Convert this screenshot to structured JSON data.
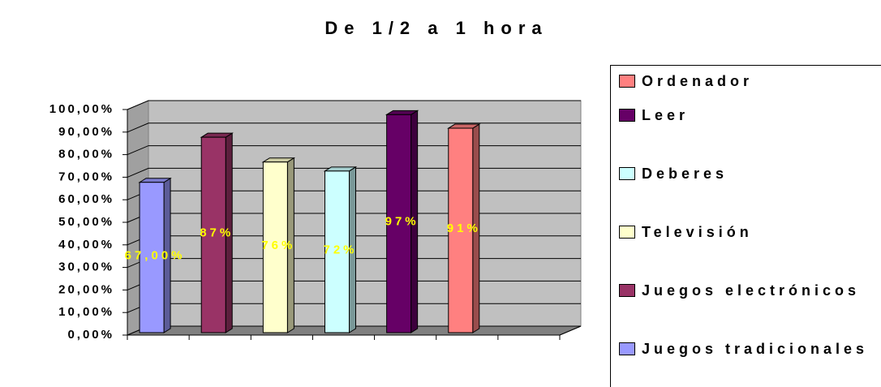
{
  "chart_data": {
    "type": "bar",
    "title": "De 1/2 a 1 hora",
    "series": [
      {
        "name": "Juegos tradicionales",
        "color": "#9999ff",
        "values": [
          67
        ],
        "value_labels": [
          "67,00%"
        ]
      },
      {
        "name": "Juegos electrónicos",
        "color": "#993366",
        "values": [
          87
        ],
        "value_labels": [
          "87%"
        ]
      },
      {
        "name": "Televisión",
        "color": "#ffffcc",
        "values": [
          76
        ],
        "value_labels": [
          "76%"
        ]
      },
      {
        "name": "Deberes",
        "color": "#ccffff",
        "values": [
          72
        ],
        "value_labels": [
          "72%"
        ]
      },
      {
        "name": "Leer",
        "color": "#660066",
        "values": [
          97
        ],
        "value_labels": [
          "97%"
        ]
      },
      {
        "name": "Ordenador",
        "color": "#ff8080",
        "values": [
          91
        ],
        "value_labels": [
          "91%"
        ]
      }
    ],
    "ylim": [
      0,
      100
    ],
    "yticks": [
      {
        "value": 0,
        "label": "0,00%"
      },
      {
        "value": 10,
        "label": "10,00%"
      },
      {
        "value": 20,
        "label": "20,00%"
      },
      {
        "value": 30,
        "label": "30,00%"
      },
      {
        "value": 40,
        "label": "40,00%"
      },
      {
        "value": 50,
        "label": "50,00%"
      },
      {
        "value": 60,
        "label": "60,00%"
      },
      {
        "value": 70,
        "label": "70,00%"
      },
      {
        "value": 80,
        "label": "80,00%"
      },
      {
        "value": 90,
        "label": "90,00%"
      },
      {
        "value": 100,
        "label": "100,00%"
      }
    ],
    "grid": true,
    "legend": "right"
  }
}
